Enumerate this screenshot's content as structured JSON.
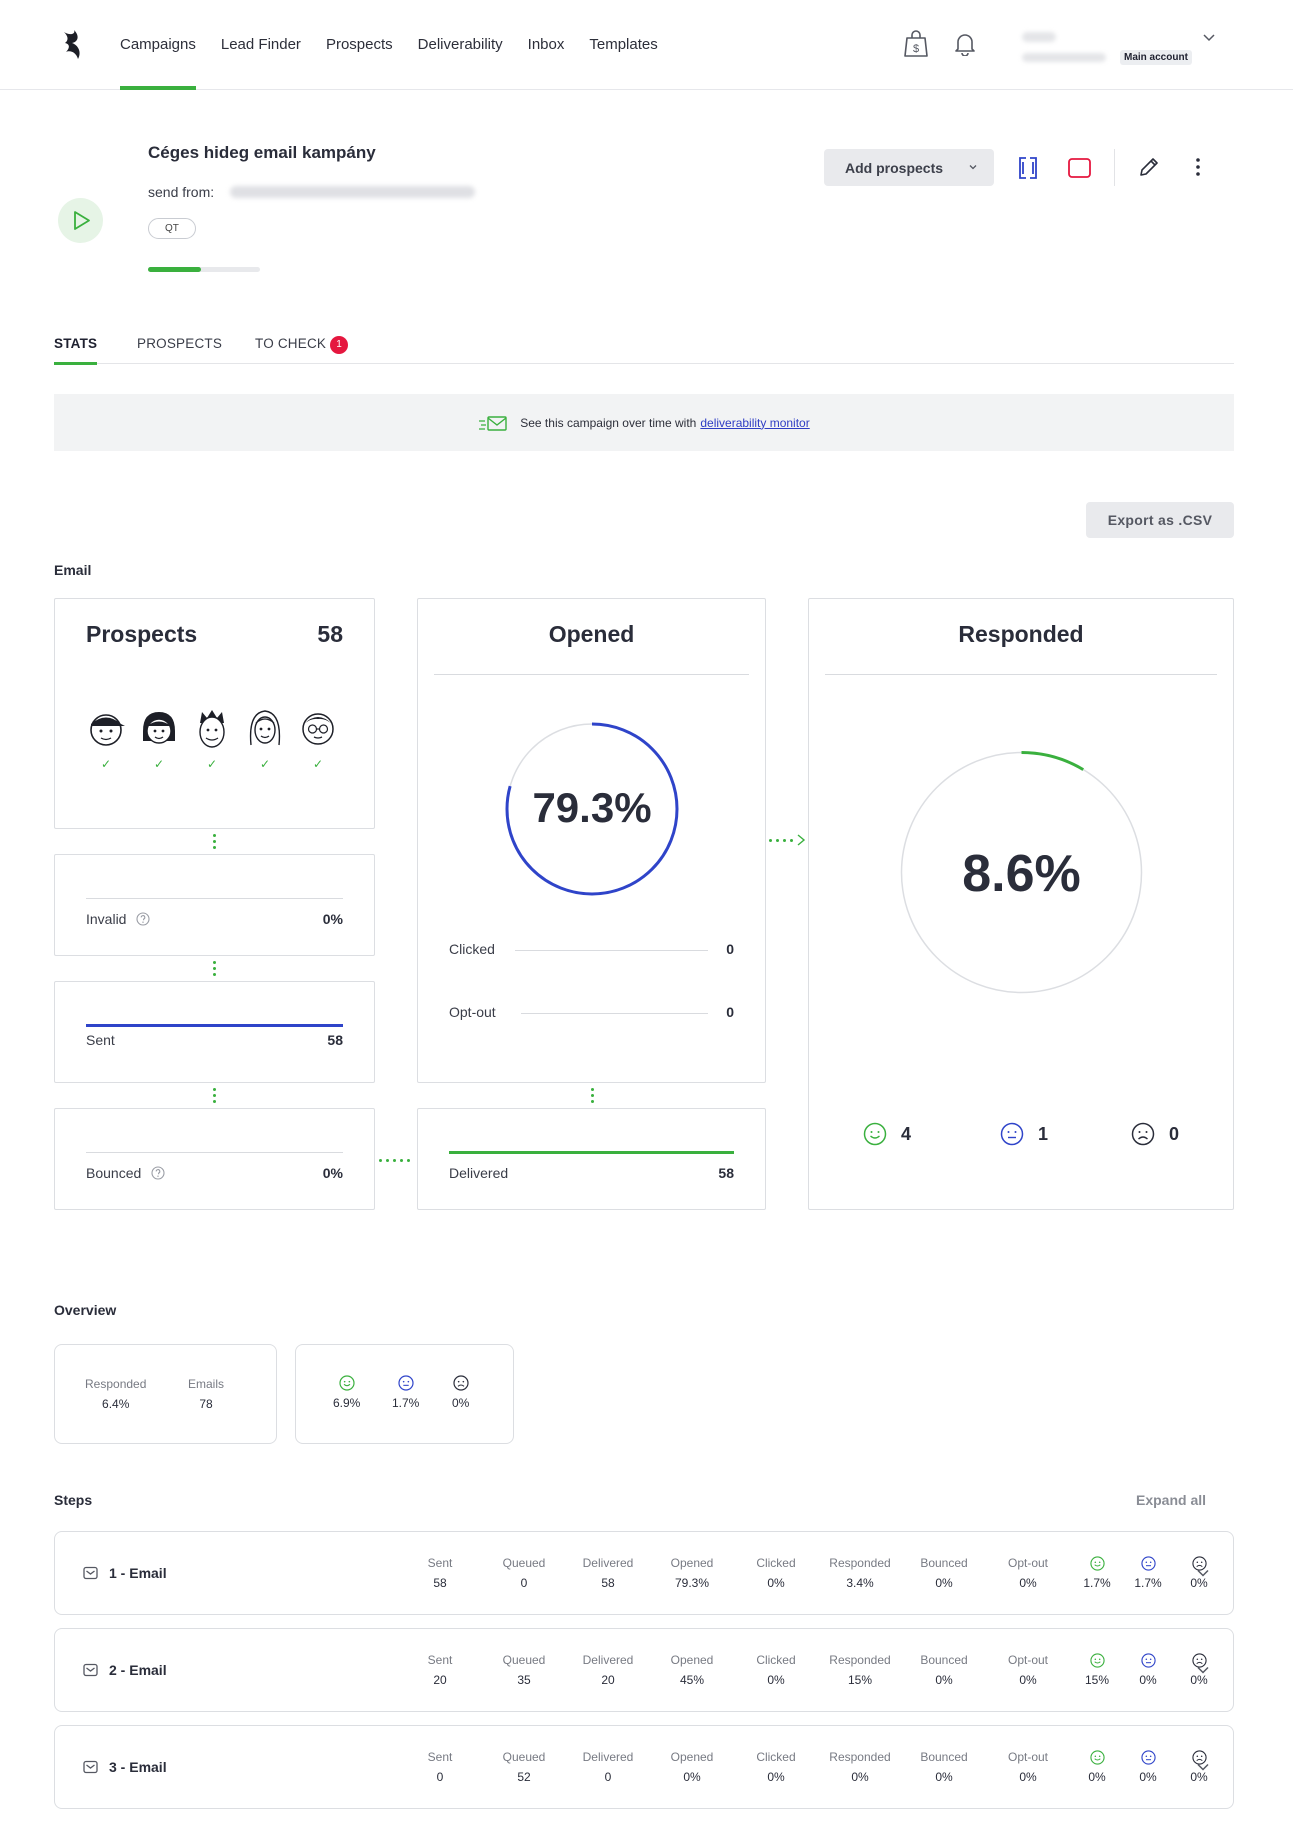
{
  "nav": {
    "items": [
      "Campaigns",
      "Lead Finder",
      "Prospects",
      "Deliverability",
      "Inbox",
      "Templates"
    ],
    "active": 0,
    "account_badge": "Main account"
  },
  "campaign": {
    "title": "Céges hideg email kampány",
    "send_from_label": "send from:",
    "tag": "QT",
    "progress": 0.47,
    "add_prospects_label": "Add prospects"
  },
  "tabs": [
    {
      "label": "STATS",
      "active": true
    },
    {
      "label": "PROSPECTS",
      "active": false
    },
    {
      "label": "TO CHECK",
      "active": false,
      "badge": "1"
    }
  ],
  "banner": {
    "text": "See this campaign over time with",
    "link": "deliverability monitor"
  },
  "export_label": "Export as .CSV",
  "email_section": {
    "heading": "Email",
    "prospects": {
      "title": "Prospects",
      "count": "58"
    },
    "invalid": {
      "label": "Invalid",
      "value": "0%"
    },
    "sent": {
      "label": "Sent",
      "value": "58"
    },
    "bounced": {
      "label": "Bounced",
      "value": "0%"
    },
    "opened": {
      "title": "Opened",
      "percent_text": "79.3%",
      "percent": 79.3,
      "clicked_label": "Clicked",
      "clicked_value": "0",
      "optout_label": "Opt-out",
      "optout_value": "0"
    },
    "delivered": {
      "label": "Delivered",
      "value": "58"
    },
    "responded": {
      "title": "Responded",
      "percent_text": "8.6%",
      "percent": 8.6,
      "positive": "4",
      "neutral": "1",
      "negative": "0"
    }
  },
  "overview": {
    "heading": "Overview",
    "responded_label": "Responded",
    "responded_value": "6.4%",
    "emails_label": "Emails",
    "emails_value": "78",
    "positive": "6.9%",
    "neutral": "1.7%",
    "negative": "0%"
  },
  "steps_section": {
    "heading": "Steps",
    "expand_all": "Expand all",
    "columns": [
      "Sent",
      "Queued",
      "Delivered",
      "Opened",
      "Clicked",
      "Responded",
      "Bounced",
      "Opt-out"
    ],
    "steps": [
      {
        "name": "1 - Email",
        "values": [
          "58",
          "0",
          "58",
          "79.3%",
          "0%",
          "3.4%",
          "0%",
          "0%"
        ],
        "positive": "1.7%",
        "neutral": "1.7%",
        "negative": "0%"
      },
      {
        "name": "2 - Email",
        "values": [
          "20",
          "35",
          "20",
          "45%",
          "0%",
          "15%",
          "0%",
          "0%"
        ],
        "positive": "15%",
        "neutral": "0%",
        "negative": "0%"
      },
      {
        "name": "3 - Email",
        "values": [
          "0",
          "52",
          "0",
          "0%",
          "0%",
          "0%",
          "0%",
          "0%"
        ],
        "positive": "0%",
        "neutral": "0%",
        "negative": "0%"
      }
    ]
  },
  "colors": {
    "accent_green": "#3ab03e",
    "accent_blue": "#2f44c9",
    "badge_red": "#e5173f"
  }
}
